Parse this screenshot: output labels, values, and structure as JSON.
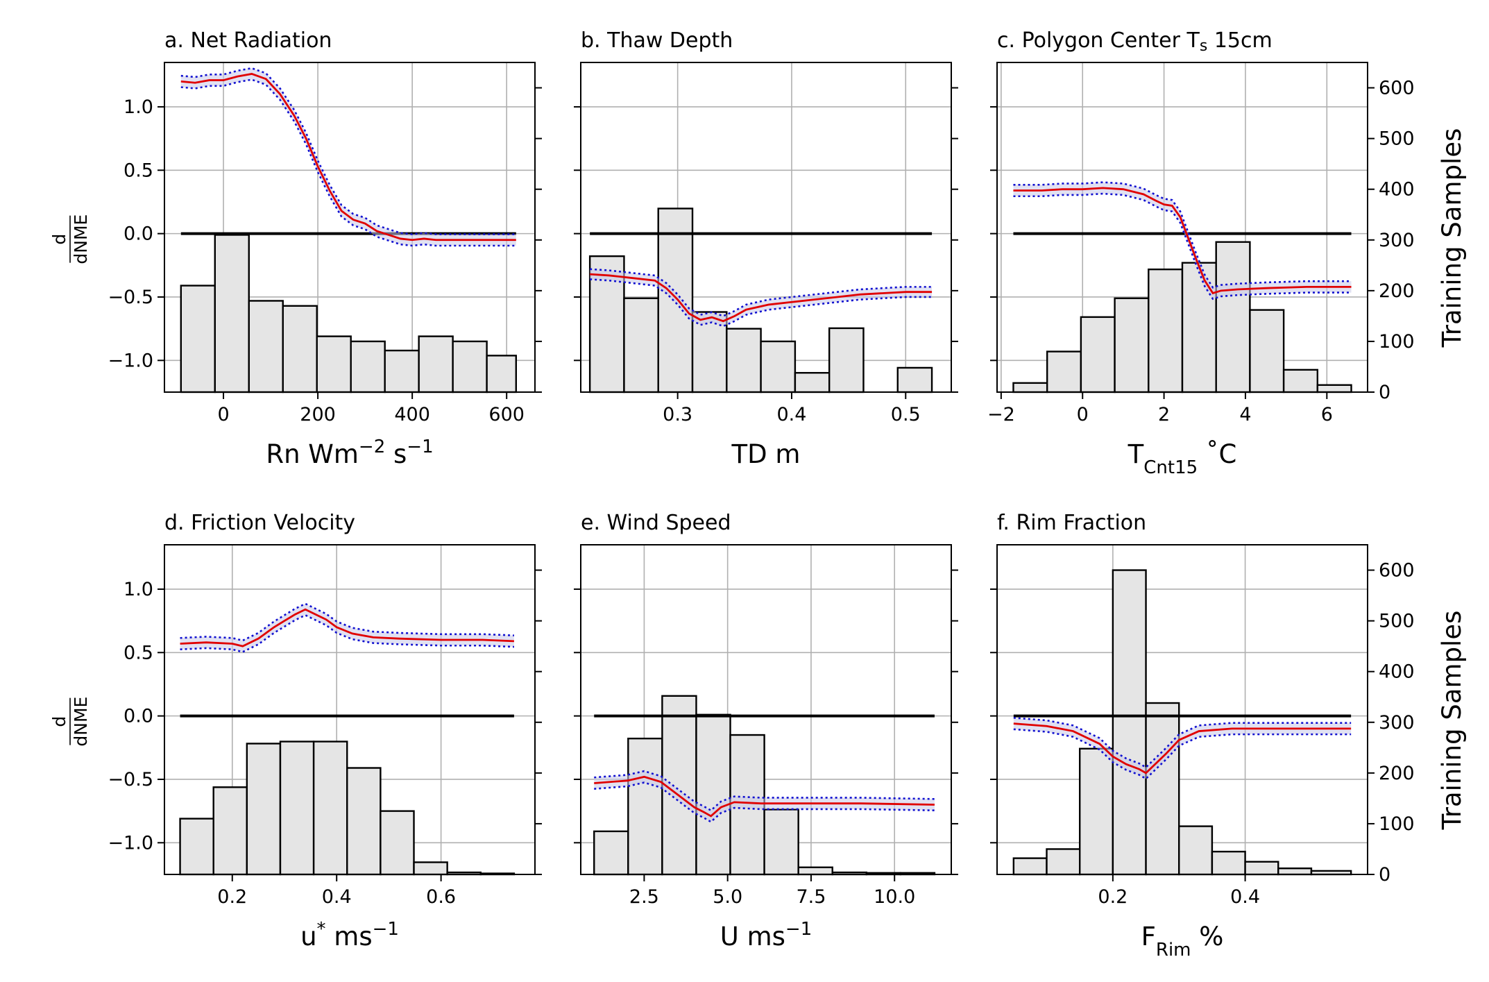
{
  "chart_data": [
    {
      "type": "line",
      "title": "a. Net Radiation",
      "xlabel": "Rn Wm",
      "xlabel_sup1": "−2",
      "xlabel_mid": " s",
      "xlabel_sup2": "−1",
      "ylabel_num": "d",
      "ylabel_den": "dNME",
      "y2label": "",
      "xlim": [
        -125,
        660
      ],
      "ylim": [
        -1.25,
        1.35
      ],
      "y2lim": [
        0,
        650
      ],
      "xticks": [
        0,
        200,
        400,
        600
      ],
      "xticklabels": [
        "0",
        "200",
        "400",
        "600"
      ],
      "yticks": [
        1.0,
        0.5,
        0.0,
        -0.5,
        -1.0
      ],
      "yticklabels": [
        "1.0",
        "0.5",
        "0.0",
        "−0.5",
        "−1.0"
      ],
      "y2ticks": [
        0,
        100,
        200,
        300,
        400,
        500,
        600
      ],
      "y2ticklabels": [],
      "hist_edges": [
        -90,
        -18,
        54,
        126,
        198,
        270,
        342,
        414,
        486,
        558,
        620
      ],
      "hist_counts": [
        210,
        310,
        180,
        170,
        110,
        100,
        82,
        110,
        100,
        72
      ],
      "mean_x": [
        -90,
        -60,
        -30,
        0,
        30,
        60,
        90,
        120,
        150,
        175,
        200,
        225,
        250,
        275,
        300,
        325,
        350,
        375,
        400,
        425,
        450,
        500,
        550,
        620
      ],
      "mean_y": [
        1.2,
        1.19,
        1.21,
        1.21,
        1.24,
        1.26,
        1.22,
        1.1,
        0.93,
        0.75,
        0.53,
        0.34,
        0.18,
        0.11,
        0.08,
        0.02,
        -0.01,
        -0.04,
        -0.05,
        -0.04,
        -0.05,
        -0.05,
        -0.05,
        -0.05
      ],
      "band": 0.045,
      "zero_line": 0.0
    },
    {
      "type": "line",
      "title": "b. Thaw Depth",
      "xlabel": "TD m",
      "ylabel_num": "",
      "ylabel_den": "",
      "y2label": "",
      "xlim": [
        0.215,
        0.54
      ],
      "ylim": [
        -1.25,
        1.35
      ],
      "y2lim": [
        0,
        650
      ],
      "xticks": [
        0.3,
        0.4,
        0.5
      ],
      "xticklabels": [
        "0.3",
        "0.4",
        "0.5"
      ],
      "yticks": [
        1.0,
        0.5,
        0.0,
        -0.5,
        -1.0
      ],
      "yticklabels": [],
      "y2ticks": [
        0,
        100,
        200,
        300,
        400,
        500,
        600
      ],
      "y2ticklabels": [],
      "hist_edges": [
        0.223,
        0.253,
        0.283,
        0.313,
        0.343,
        0.373,
        0.403,
        0.433,
        0.463,
        0.493,
        0.523
      ],
      "hist_counts": [
        268,
        185,
        362,
        158,
        125,
        100,
        38,
        126,
        0,
        48
      ],
      "mean_x": [
        0.223,
        0.24,
        0.26,
        0.28,
        0.29,
        0.3,
        0.31,
        0.32,
        0.33,
        0.34,
        0.35,
        0.36,
        0.38,
        0.4,
        0.42,
        0.44,
        0.46,
        0.48,
        0.5,
        0.523
      ],
      "mean_y": [
        -0.32,
        -0.33,
        -0.35,
        -0.37,
        -0.43,
        -0.52,
        -0.63,
        -0.68,
        -0.66,
        -0.69,
        -0.65,
        -0.6,
        -0.56,
        -0.54,
        -0.52,
        -0.5,
        -0.48,
        -0.47,
        -0.46,
        -0.46
      ],
      "band": 0.04,
      "zero_line": 0.0
    },
    {
      "type": "line",
      "title": "c. Polygon Center T",
      "title_sub": "s",
      "title_tail": " 15cm",
      "xlabel": "T",
      "xlabel_sub": "Cnt15",
      "xlabel_tail": " ˚C",
      "ylabel_num": "",
      "ylabel_den": "",
      "y2label": "Training Samples",
      "xlim": [
        -2.1,
        7.0
      ],
      "ylim": [
        -1.25,
        1.35
      ],
      "y2lim": [
        0,
        650
      ],
      "xticks": [
        -2,
        0,
        2,
        4,
        6
      ],
      "xticklabels": [
        "−2",
        "0",
        "2",
        "4",
        "6"
      ],
      "yticks": [
        1.0,
        0.5,
        0.0,
        -0.5,
        -1.0
      ],
      "yticklabels": [],
      "y2ticks": [
        0,
        100,
        200,
        300,
        400,
        500,
        600
      ],
      "y2ticklabels": [
        "0",
        "100",
        "200",
        "300",
        "400",
        "500",
        "600"
      ],
      "hist_edges": [
        -1.7,
        -0.87,
        -0.04,
        0.79,
        1.62,
        2.45,
        3.28,
        4.11,
        4.94,
        5.77,
        6.6
      ],
      "hist_counts": [
        18,
        80,
        148,
        185,
        242,
        255,
        296,
        162,
        44,
        14
      ],
      "mean_x": [
        -1.7,
        -1.0,
        -0.5,
        0,
        0.5,
        1.0,
        1.5,
        1.8,
        2.0,
        2.2,
        2.4,
        2.6,
        2.8,
        3.0,
        3.2,
        3.4,
        3.8,
        4.5,
        5.5,
        6.6
      ],
      "mean_y": [
        0.34,
        0.34,
        0.35,
        0.35,
        0.36,
        0.35,
        0.31,
        0.26,
        0.23,
        0.22,
        0.13,
        -0.04,
        -0.21,
        -0.37,
        -0.47,
        -0.45,
        -0.44,
        -0.43,
        -0.42,
        -0.42
      ],
      "band": 0.045,
      "zero_line": 0.0
    },
    {
      "type": "line",
      "title": "d. Friction Velocity",
      "xlabel": "u",
      "xlabel_sup0": "*",
      "xlabel_mid": " ms",
      "xlabel_sup2": "−1",
      "ylabel_num": "d",
      "ylabel_den": "dNME",
      "y2label": "",
      "xlim": [
        0.07,
        0.78
      ],
      "ylim": [
        -1.25,
        1.35
      ],
      "y2lim": [
        0,
        650
      ],
      "xticks": [
        0.2,
        0.4,
        0.6
      ],
      "xticklabels": [
        "0.2",
        "0.4",
        "0.6"
      ],
      "yticks": [
        1.0,
        0.5,
        0.0,
        -0.5,
        -1.0
      ],
      "yticklabels": [
        "1.0",
        "0.5",
        "0.0",
        "−0.5",
        "−1.0"
      ],
      "y2ticks": [
        0,
        100,
        200,
        300,
        400,
        500,
        600
      ],
      "y2ticklabels": [],
      "hist_edges": [
        0.1,
        0.164,
        0.228,
        0.292,
        0.356,
        0.42,
        0.484,
        0.548,
        0.612,
        0.676,
        0.74
      ],
      "hist_counts": [
        110,
        172,
        258,
        262,
        262,
        210,
        125,
        24,
        4,
        2
      ],
      "mean_x": [
        0.1,
        0.15,
        0.2,
        0.22,
        0.25,
        0.28,
        0.3,
        0.32,
        0.34,
        0.36,
        0.38,
        0.4,
        0.43,
        0.47,
        0.52,
        0.6,
        0.68,
        0.74
      ],
      "mean_y": [
        0.57,
        0.58,
        0.57,
        0.55,
        0.61,
        0.7,
        0.75,
        0.8,
        0.84,
        0.8,
        0.76,
        0.7,
        0.65,
        0.62,
        0.61,
        0.6,
        0.6,
        0.59
      ],
      "band": 0.045,
      "zero_line": 0.0
    },
    {
      "type": "line",
      "title": "e. Wind Speed",
      "xlabel": "U ms",
      "xlabel_sup2": "−1",
      "ylabel_num": "",
      "ylabel_den": "",
      "y2label": "",
      "xlim": [
        0.6,
        11.7
      ],
      "ylim": [
        -1.25,
        1.35
      ],
      "y2lim": [
        0,
        650
      ],
      "xticks": [
        2.5,
        5.0,
        7.5,
        10.0
      ],
      "xticklabels": [
        "2.5",
        "5.0",
        "7.5",
        "10.0"
      ],
      "yticks": [
        1.0,
        0.5,
        0.0,
        -0.5,
        -1.0
      ],
      "yticklabels": [],
      "y2ticks": [
        0,
        100,
        200,
        300,
        400,
        500,
        600
      ],
      "y2ticklabels": [],
      "hist_edges": [
        1.0,
        2.02,
        3.04,
        4.06,
        5.08,
        6.1,
        7.12,
        8.14,
        9.16,
        10.18,
        11.2
      ],
      "hist_counts": [
        85,
        268,
        352,
        315,
        275,
        128,
        14,
        4,
        3,
        3
      ],
      "mean_x": [
        1.0,
        2.0,
        2.5,
        3.0,
        3.5,
        4.0,
        4.3,
        4.5,
        4.8,
        5.2,
        6.0,
        7.0,
        8.0,
        9.0,
        11.2
      ],
      "mean_y": [
        -0.53,
        -0.51,
        -0.48,
        -0.52,
        -0.62,
        -0.72,
        -0.76,
        -0.79,
        -0.72,
        -0.68,
        -0.69,
        -0.69,
        -0.69,
        -0.69,
        -0.7
      ],
      "band": 0.045,
      "zero_line": 0.0
    },
    {
      "type": "line",
      "title": "f. Rim Fraction",
      "xlabel": "F",
      "xlabel_sub": "Rim",
      "xlabel_tail": " %",
      "ylabel_num": "",
      "ylabel_den": "",
      "y2label": "Training Samples",
      "xlim": [
        0.025,
        0.585
      ],
      "ylim": [
        -1.25,
        1.35
      ],
      "y2lim": [
        0,
        650
      ],
      "xticks": [
        0.2,
        0.4
      ],
      "xticklabels": [
        "0.2",
        "0.4"
      ],
      "yticks": [
        1.0,
        0.5,
        0.0,
        -0.5,
        -1.0
      ],
      "yticklabels": [],
      "y2ticks": [
        0,
        100,
        200,
        300,
        400,
        500,
        600
      ],
      "y2ticklabels": [
        "0",
        "100",
        "200",
        "300",
        "400",
        "500",
        "600"
      ],
      "hist_edges": [
        0.05,
        0.1,
        0.15,
        0.2,
        0.25,
        0.3,
        0.35,
        0.4,
        0.45,
        0.5,
        0.56
      ],
      "hist_counts": [
        32,
        50,
        248,
        600,
        338,
        95,
        45,
        25,
        12,
        7
      ],
      "mean_x": [
        0.05,
        0.1,
        0.14,
        0.18,
        0.2,
        0.22,
        0.24,
        0.25,
        0.26,
        0.28,
        0.3,
        0.33,
        0.38,
        0.45,
        0.56
      ],
      "mean_y": [
        -0.06,
        -0.08,
        -0.12,
        -0.22,
        -0.32,
        -0.38,
        -0.42,
        -0.45,
        -0.4,
        -0.3,
        -0.19,
        -0.12,
        -0.1,
        -0.1,
        -0.1
      ],
      "band": 0.045,
      "zero_line": 0.0
    }
  ]
}
